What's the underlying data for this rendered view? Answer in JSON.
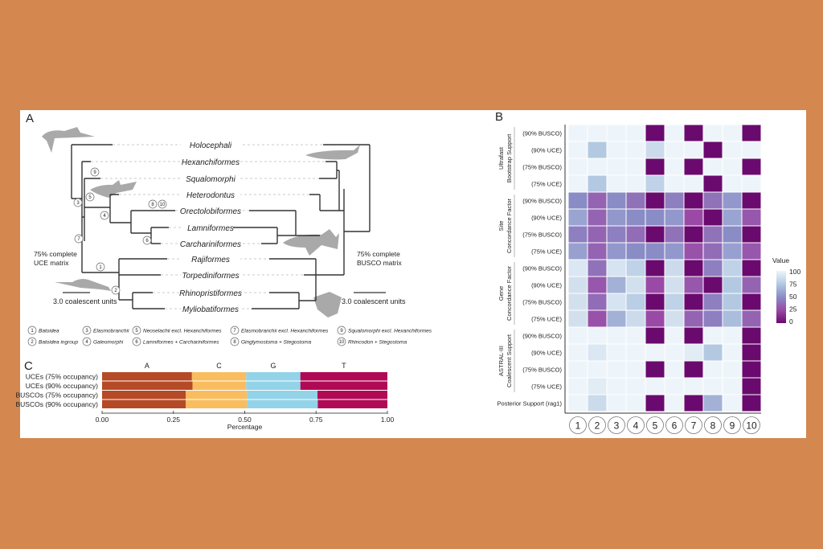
{
  "panel_labels": {
    "a": "A",
    "b": "B",
    "c": "C"
  },
  "tree": {
    "taxa": [
      "Holocephali",
      "Hexanchiformes",
      "Squalomorphi",
      "Heterodontus",
      "Orectolobiformes",
      "Lamniformes",
      "Carchariniformes",
      "Rajiformes",
      "Torpediniformes",
      "Rhinopristiformes",
      "Myliobatiformes"
    ],
    "left_matrix": [
      "75% complete",
      "UCE matrix"
    ],
    "right_matrix": [
      "75% complete",
      "BUSCO matrix"
    ],
    "scale_label": "3.0 coalescent units",
    "node_numbers": [
      "1",
      "2",
      "3",
      "4",
      "5",
      "6",
      "7",
      "8",
      "9",
      "10"
    ],
    "legend": [
      {
        "n": "1",
        "label": "Batoidea"
      },
      {
        "n": "2",
        "label": "Batoidea ingroup"
      },
      {
        "n": "3",
        "label": "Elasmobranchii"
      },
      {
        "n": "4",
        "label": "Galeomorphi"
      },
      {
        "n": "5",
        "label": "Neoselachii excl. Hexanchiformes"
      },
      {
        "n": "6",
        "label": "Lamniformes + Carchariniformes"
      },
      {
        "n": "7",
        "label": "Elasmobranchii excl. Hexanchiformes"
      },
      {
        "n": "8",
        "label": "Ginglymostoma + Stegostoma"
      },
      {
        "n": "9",
        "label": "Squalomorphi excl. Hexanchiformes"
      },
      {
        "n": "10",
        "label": "Rhincodon + Stegostoma"
      }
    ]
  },
  "chart_data": [
    {
      "type": "heatmap",
      "title": "B",
      "legend_title": "Value",
      "legend_ticks": [
        "100",
        "75",
        "50",
        "25",
        "0"
      ],
      "colors": {
        "0": "#6a0a6e",
        "25": "#9a4aa6",
        "50": "#8a8cc6",
        "75": "#b3c9e2",
        "100": "#eef5fa"
      },
      "groups": [
        {
          "label": [
            "Ultrafast",
            "Bootstrap Support"
          ],
          "rows": [
            0,
            1,
            2,
            3
          ]
        },
        {
          "label": [
            "Site",
            "Concordance Factor"
          ],
          "rows": [
            4,
            5,
            6,
            7
          ]
        },
        {
          "label": [
            "Gene",
            "Concordance Factor"
          ],
          "rows": [
            8,
            9,
            10,
            11
          ]
        },
        {
          "label": [
            "ASTRAL-III",
            "Coalescent Support"
          ],
          "rows": [
            12,
            13,
            14,
            15
          ]
        }
      ],
      "rows": [
        "(90% BUSCO)",
        "(90% UCE)",
        "(75% BUSCO)",
        "(75% UCE)",
        "(90% BUSCO)",
        "(90% UCE)",
        "(75% BUSCO)",
        "(75% UCE)",
        "(90% BUSCO)",
        "(90% UCE)",
        "(75% BUSCO)",
        "(75% UCE)",
        "(90% BUSCO)",
        "(90% UCE)",
        "(75% BUSCO)",
        "(75% UCE)",
        "Posterior Support (rag1)"
      ],
      "columns": [
        "1",
        "2",
        "3",
        "4",
        "5",
        "6",
        "7",
        "8",
        "9",
        "10"
      ],
      "values": [
        [
          100,
          100,
          100,
          100,
          0,
          100,
          0,
          100,
          100,
          0
        ],
        [
          100,
          75,
          100,
          100,
          85,
          100,
          100,
          0,
          100,
          100
        ],
        [
          100,
          100,
          100,
          100,
          0,
          100,
          0,
          100,
          100,
          0
        ],
        [
          100,
          75,
          100,
          100,
          80,
          100,
          100,
          0,
          100,
          100
        ],
        [
          50,
          35,
          50,
          40,
          0,
          45,
          0,
          40,
          55,
          0
        ],
        [
          60,
          35,
          55,
          50,
          50,
          55,
          25,
          0,
          60,
          30
        ],
        [
          45,
          35,
          45,
          38,
          0,
          40,
          0,
          40,
          50,
          0
        ],
        [
          58,
          35,
          55,
          50,
          50,
          55,
          28,
          38,
          58,
          30
        ],
        [
          92,
          40,
          90,
          80,
          0,
          85,
          0,
          45,
          80,
          0
        ],
        [
          88,
          30,
          65,
          88,
          25,
          88,
          30,
          0,
          75,
          35
        ],
        [
          88,
          38,
          90,
          78,
          0,
          80,
          0,
          45,
          75,
          0
        ],
        [
          88,
          28,
          65,
          85,
          25,
          88,
          35,
          45,
          70,
          35
        ],
        [
          100,
          100,
          100,
          100,
          0,
          100,
          0,
          100,
          100,
          0
        ],
        [
          100,
          92,
          100,
          100,
          100,
          100,
          95,
          75,
          100,
          0
        ],
        [
          100,
          100,
          100,
          100,
          0,
          100,
          0,
          100,
          100,
          0
        ],
        [
          100,
          95,
          100,
          100,
          100,
          100,
          100,
          100,
          100,
          0
        ],
        [
          100,
          85,
          100,
          100,
          0,
          100,
          0,
          65,
          100,
          0
        ]
      ],
      "range": [
        0,
        100
      ]
    },
    {
      "type": "bar",
      "stacked": true,
      "orientation": "horizontal",
      "title": "C",
      "xlabel": "Percentage",
      "xlim": [
        0,
        1
      ],
      "xticks": [
        "0.00",
        "0.25",
        "0.50",
        "0.75",
        "1.00"
      ],
      "categories": [
        "UCEs (75% occupancy)",
        "UCEs (90% occupancy)",
        "BUSCOs (75% occupancy)",
        "BUSCOs (90% occupancy)"
      ],
      "series": [
        {
          "name": "A",
          "color": "#b54a26",
          "values": [
            0.315,
            0.317,
            0.293,
            0.293
          ]
        },
        {
          "name": "C",
          "color": "#f9bd5f",
          "values": [
            0.19,
            0.188,
            0.215,
            0.215
          ]
        },
        {
          "name": "G",
          "color": "#93d3e8",
          "values": [
            0.19,
            0.19,
            0.247,
            0.248
          ]
        },
        {
          "name": "T",
          "color": "#b00a56",
          "values": [
            0.305,
            0.305,
            0.245,
            0.244
          ]
        }
      ]
    }
  ]
}
